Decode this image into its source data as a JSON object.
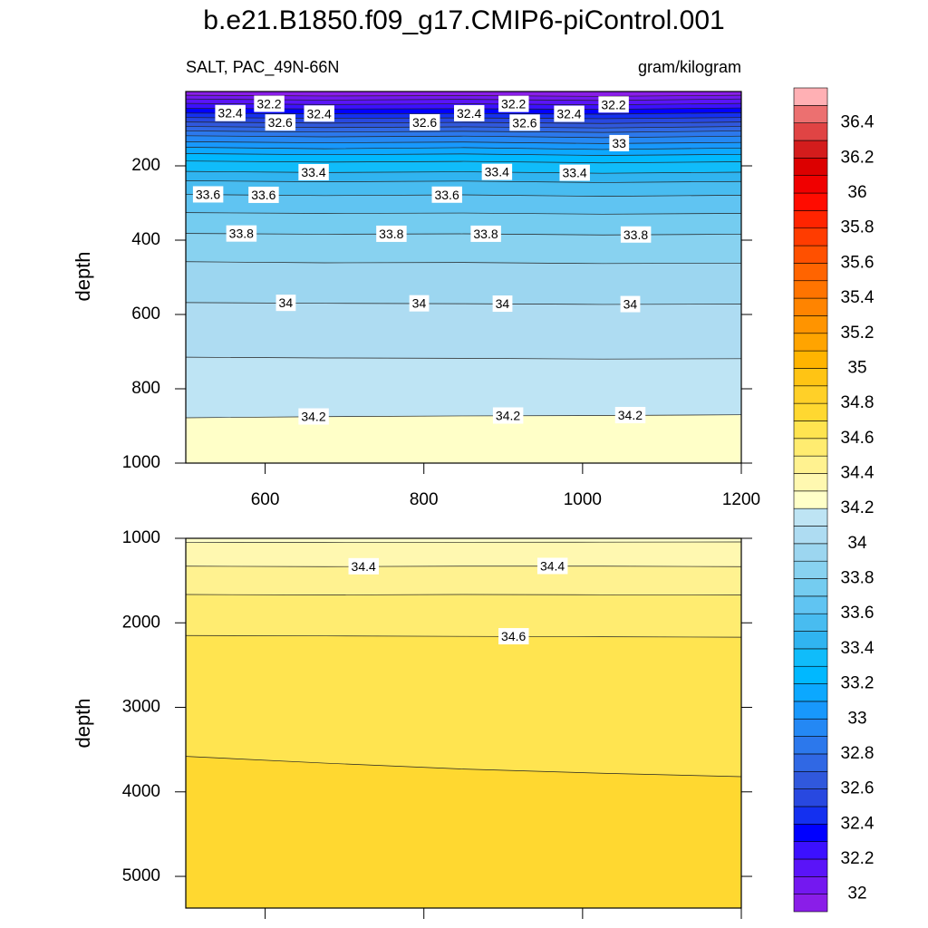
{
  "chart_data": [
    {
      "type": "contour",
      "title": "b.e21.B1850.f09_g17.CMIP6-piControl.001",
      "subtitle_left": "SALT, PAC_49N-66N",
      "subtitle_right": "gram/kilogram",
      "ylabel": "depth",
      "xlim": [
        500,
        1200
      ],
      "xticks": [
        600,
        800,
        1000,
        1200
      ],
      "ylim": [
        0,
        1000
      ],
      "yticks": [
        200,
        400,
        600,
        800,
        1000
      ],
      "x": [
        500,
        675,
        850,
        1025,
        1200
      ],
      "series": [
        {
          "level": 32,
          "values": [
            10,
            12,
            11,
            13,
            10
          ]
        },
        {
          "level": 32.1,
          "values": [
            20,
            23,
            21,
            24,
            20
          ]
        },
        {
          "level": 32.2,
          "values": [
            32,
            35,
            33,
            36,
            32
          ]
        },
        {
          "level": 32.3,
          "values": [
            45,
            47,
            46,
            48,
            44
          ]
        },
        {
          "level": 32.4,
          "values": [
            58,
            60,
            59,
            61,
            57
          ]
        },
        {
          "level": 32.5,
          "values": [
            70,
            72,
            71,
            73,
            70
          ]
        },
        {
          "level": 32.6,
          "values": [
            82,
            85,
            83,
            86,
            82
          ]
        },
        {
          "level": 32.7,
          "values": [
            94,
            97,
            95,
            98,
            94
          ]
        },
        {
          "level": 32.8,
          "values": [
            106,
            109,
            107,
            110,
            106
          ]
        },
        {
          "level": 32.9,
          "values": [
            119,
            122,
            120,
            124,
            120
          ]
        },
        {
          "level": 33,
          "values": [
            135,
            138,
            136,
            140,
            137
          ]
        },
        {
          "level": 33.1,
          "values": [
            150,
            154,
            151,
            156,
            152
          ]
        },
        {
          "level": 33.2,
          "values": [
            167,
            170,
            168,
            172,
            169
          ]
        },
        {
          "level": 33.3,
          "values": [
            187,
            190,
            188,
            192,
            189
          ]
        },
        {
          "level": 33.4,
          "values": [
            215,
            218,
            216,
            220,
            217
          ]
        },
        {
          "level": 33.5,
          "values": [
            240,
            243,
            241,
            245,
            242
          ]
        },
        {
          "level": 33.6,
          "values": [
            277,
            280,
            278,
            282,
            279
          ]
        },
        {
          "level": 33.7,
          "values": [
            326,
            328,
            327,
            330,
            328
          ]
        },
        {
          "level": 33.8,
          "values": [
            382,
            384,
            383,
            386,
            384
          ]
        },
        {
          "level": 33.9,
          "values": [
            458,
            461,
            460,
            463,
            462
          ]
        },
        {
          "level": 34,
          "values": [
            568,
            570,
            571,
            573,
            572
          ]
        },
        {
          "level": 34.1,
          "values": [
            715,
            717,
            718,
            720,
            719
          ]
        },
        {
          "level": 34.2,
          "values": [
            878,
            875,
            873,
            872,
            870
          ]
        }
      ],
      "colorbar": {
        "levels": [
          32,
          32.1,
          32.2,
          32.3,
          32.4,
          32.5,
          32.6,
          32.7,
          32.8,
          32.9,
          33,
          33.1,
          33.2,
          33.3,
          33.4,
          33.5,
          33.6,
          33.7,
          33.8,
          33.9,
          34,
          34.1,
          34.2,
          34.3,
          34.4,
          34.5,
          34.6,
          34.7,
          34.8,
          34.9,
          35,
          35.1,
          35.2,
          35.3,
          35.4,
          35.5,
          35.6,
          35.7,
          35.8,
          35.9,
          36,
          36.1,
          36.2,
          36.3,
          36.4,
          36.5
        ],
        "colors": [
          "#8a1ee8",
          "#7418f0",
          "#5a14f8",
          "#3c10ff",
          "#0000ff",
          "#1430f0",
          "#2848e0",
          "#3058dc",
          "#3068e4",
          "#2c78ec",
          "#2488f4",
          "#1898fc",
          "#0ca8ff",
          "#00b8ff",
          "#10bcfa",
          "#30b4f0",
          "#48bcf0",
          "#60c4f2",
          "#74ccf0",
          "#88d2f0",
          "#9cd6f0",
          "#aedcf2",
          "#bee4f4",
          "#ffffc8",
          "#fff8b0",
          "#fff290",
          "#ffec70",
          "#ffe450",
          "#ffd830",
          "#ffd028",
          "#ffc414",
          "#ffb400",
          "#ffa400",
          "#ff9400",
          "#ff8400",
          "#ff7400",
          "#ff6400",
          "#ff5000",
          "#ff3c00",
          "#ff2400",
          "#ff0c00",
          "#f00000",
          "#dc0000",
          "#d41c1c",
          "#e04444",
          "#ec7070",
          "#ffb0b4"
        ],
        "ticks": [
          32,
          32.2,
          32.4,
          32.6,
          32.8,
          33,
          33.2,
          33.4,
          33.6,
          33.8,
          34,
          34.2,
          34.4,
          34.6,
          34.8,
          35,
          35.2,
          35.4,
          35.6,
          35.8,
          36,
          36.2,
          36.4
        ]
      }
    },
    {
      "type": "contour",
      "ylabel": "depth",
      "xlim": [
        500,
        1200
      ],
      "ylim": [
        1000,
        5375
      ],
      "yticks": [
        1000,
        2000,
        3000,
        4000,
        5000
      ],
      "x": [
        500,
        675,
        850,
        1025,
        1200
      ],
      "series": [
        {
          "level": 34.3,
          "values": [
            1050,
            1048,
            1046,
            1045,
            1043
          ]
        },
        {
          "level": 34.4,
          "values": [
            1330,
            1335,
            1330,
            1330,
            1335
          ]
        },
        {
          "level": 34.5,
          "values": [
            1665,
            1670,
            1665,
            1668,
            1670
          ]
        },
        {
          "level": 34.6,
          "values": [
            2150,
            2155,
            2160,
            2165,
            2170
          ]
        },
        {
          "level": 34.7,
          "values": [
            3580,
            3660,
            3730,
            3780,
            3820
          ]
        }
      ]
    }
  ]
}
